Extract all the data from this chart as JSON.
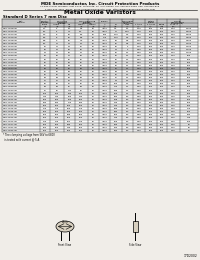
{
  "title_company": "MDE Semiconductor, Inc. Circuit Protection Products",
  "addr1": "74-390 Stellar Tampico, Unit #716, La Quinta, CA  USA 92253  Tel: 760-836-4948  Fax: 760-836-513",
  "addr2": "1-800-231-4901  Email: sales@mdesemiconductor.com  http://www.mdesemiconductor.com",
  "title_main": "Metal Oxide Varistors",
  "subtitle": "Standard D Series 7 mm Disc",
  "doc_number": "17D2002",
  "bg_color": "#f0ede8",
  "table_bg": "#ffffff",
  "header_bg": "#c8c8c8",
  "alt_row_bg": "#e8e8e8",
  "highlight_bg": "#b0b0b0",
  "note": "* The clamping voltage from 56V to 680V\n  is tested with current @ 5 A.",
  "highlight_row": 13,
  "rows": [
    [
      "MDE-7D050M",
      "4.7",
      "4",
      "6.1",
      "3.5",
      "20",
      "<100",
      "7.5",
      "0.4",
      "1.00",
      "500",
      "400",
      "0.10",
      "3,300"
    ],
    [
      "MDE-7D100M",
      "8.2",
      "5",
      "7.1",
      "4.2",
      "25",
      "<100",
      "11",
      "1.25",
      "1.00",
      "500",
      "400",
      "0.10",
      "2,500"
    ],
    [
      "MDE-7D110M",
      "3.3",
      "8",
      "12",
      "5.5",
      "22",
      "130",
      "14.5",
      "2.5",
      "1.25",
      "500",
      "400",
      "0.10",
      "2,500"
    ],
    [
      "MDE-7D140M",
      "5.6",
      "8",
      "12",
      "6.5",
      "25",
      "175",
      "14.5",
      "2.5",
      "1.25",
      "500",
      "400",
      "0.10",
      "1,500"
    ],
    [
      "MDE-7D150M",
      "6.8",
      "9",
      "12",
      "7.5",
      "20",
      "<100",
      "18",
      "3.5",
      "1.25",
      "500",
      "400",
      "0.10",
      "1,500"
    ],
    [
      "MDE-7D180M",
      "8.2",
      "11",
      "14",
      "9.1",
      "20",
      "<100",
      "22",
      "3.5",
      "1.25",
      "500",
      "400",
      "0.10",
      "1,200"
    ],
    [
      "MDE-7D200M",
      "10",
      "11",
      "14",
      "10",
      "20",
      "<100",
      "26",
      "4",
      "1.25",
      "500",
      "400",
      "0.10",
      "1,200"
    ],
    [
      "MDE-7D240M",
      "12",
      "14",
      "18",
      "12",
      "20",
      "<100",
      "31",
      "4",
      "1.50",
      "500",
      "400",
      "0.10",
      "1,100"
    ],
    [
      "MDE-7D270M",
      "14",
      "14",
      "18",
      "14",
      "20",
      "<100",
      "36",
      "4.1",
      "1.50",
      "500",
      "400",
      "0.10",
      "1,000"
    ],
    [
      "MDE-7D300M",
      "18",
      "18",
      "24",
      "18",
      "20",
      "<100",
      "40",
      "4.1",
      "1.50",
      "500",
      "400",
      "0.10",
      "900"
    ],
    [
      "MDE-7D350M",
      "20",
      "20",
      "26",
      "20",
      "25",
      "<100",
      "46",
      "4.1",
      "1.50",
      "500",
      "400",
      "0.10",
      "850"
    ],
    [
      "MDE-7D390M",
      "22",
      "22",
      "28",
      "22",
      "25",
      "<100",
      "51",
      "4.1",
      "1.50",
      "500",
      "400",
      "0.10",
      "800"
    ],
    [
      "MDE-7D420M",
      "25",
      "25",
      "33",
      "25",
      "25",
      "<100",
      "56",
      "4.1",
      "1.50",
      "500",
      "400",
      "0.10",
      "750"
    ],
    [
      "MDE-7D470M",
      "28",
      "28",
      "36",
      "28",
      "25",
      "<100",
      "62",
      "4.1",
      "1.50",
      "500",
      "400",
      "0.10",
      "700"
    ],
    [
      "MDE-7D510M",
      "30",
      "30",
      "39",
      "30",
      "25",
      "<100",
      "68",
      "4.1",
      "1.50",
      "500",
      "400",
      "0.10",
      "650"
    ],
    [
      "MDE-7D560M",
      "35",
      "35",
      "45",
      "35",
      "25",
      "<100",
      "75",
      "4.1",
      "1.50",
      "500",
      "400",
      "0.10",
      "600"
    ],
    [
      "MDE-7D620M",
      "39",
      "39",
      "51",
      "39",
      "25",
      "<100",
      "82",
      "4.1",
      "1.50",
      "500",
      "400",
      "0.10",
      "550"
    ],
    [
      "MDE-7D680M",
      "47",
      "47",
      "62",
      "47",
      "30",
      "<100",
      "91",
      "4.1",
      "1.50",
      "500",
      "400",
      "0.10",
      "500"
    ],
    [
      "MDE-7D750M",
      "56",
      "56",
      "72",
      "56",
      "30",
      "<100",
      "100",
      "4.1",
      "1.50",
      "500",
      "400",
      "0.10",
      "450"
    ],
    [
      "MDE-7D820M",
      "68",
      "68",
      "85",
      "68",
      "30",
      "<100",
      "113",
      "4.1",
      "1.50",
      "500",
      "400",
      "0.10",
      "400"
    ],
    [
      "MDE-7D910M",
      "82",
      "85",
      "112",
      "85",
      "60",
      "<500",
      "135",
      "4.1",
      "1.50",
      "500",
      "400",
      "0.10",
      "350"
    ],
    [
      "MDE-7D101M",
      "100",
      "100",
      "130",
      "100",
      "60",
      "<500",
      "165",
      "4.1",
      "1.50",
      "500",
      "400",
      "0.10",
      "300"
    ],
    [
      "MDE-7D111M",
      "110",
      "110",
      "150",
      "110",
      "60",
      "<500",
      "180",
      "6.3",
      "1.50",
      "500",
      "400",
      "0.25",
      "275"
    ],
    [
      "MDE-7D121M",
      "120",
      "120",
      "160",
      "120",
      "60",
      "<500",
      "198",
      "6.3",
      "1.50",
      "500",
      "400",
      "0.25",
      "250"
    ],
    [
      "MDE-7D131M",
      "130",
      "130",
      "170",
      "130",
      "60",
      "<500",
      "215",
      "6.3",
      "1.50",
      "500",
      "400",
      "0.25",
      "225"
    ],
    [
      "MDE-7D141M",
      "150",
      "150",
      "200",
      "150",
      "60",
      "<500",
      "246",
      "6.3",
      "1.50",
      "500",
      "400",
      "0.25",
      "200"
    ],
    [
      "MDE-7D151M",
      "175",
      "175",
      "225",
      "175",
      "60",
      "<500",
      "286",
      "6.3",
      "1.50",
      "500",
      "400",
      "0.25",
      "175"
    ],
    [
      "MDE-7D181M",
      "200",
      "200",
      "259",
      "200",
      "60",
      "<500",
      "330",
      "6.3",
      "1.50",
      "500",
      "400",
      "0.25",
      "150"
    ],
    [
      "MDE-7D201M",
      "220",
      "220",
      "285",
      "220",
      "65",
      "<500",
      "360",
      "6.3",
      "1.50",
      "500",
      "400",
      "0.25",
      "130"
    ],
    [
      "MDE-7D221M",
      "250",
      "250",
      "320",
      "250",
      "65",
      "<500",
      "415",
      "6.3",
      "1.50",
      "500",
      "400",
      "0.25",
      "115"
    ],
    [
      "MDE-7D241M",
      "275",
      "275",
      "354",
      "275",
      "65",
      "<500",
      "455",
      "6.3",
      "1.50",
      "500",
      "400",
      "0.25",
      "105"
    ],
    [
      "MDE-7D271M",
      "300",
      "300",
      "385",
      "300",
      "65",
      "<500",
      "495",
      "6.3",
      "1.50",
      "500",
      "400",
      "0.25",
      "95"
    ],
    [
      "MDE-7D301M",
      "320",
      "320",
      "415",
      "320",
      "65",
      "<500",
      "530",
      "6.3",
      "1.50",
      "500",
      "400",
      "0.25",
      "90"
    ],
    [
      "MDE-7D321M",
      "350",
      "350",
      "460",
      "350",
      "65",
      "<500",
      "580",
      "6.3",
      "1.50",
      "500",
      "400",
      "0.25",
      "80"
    ]
  ]
}
